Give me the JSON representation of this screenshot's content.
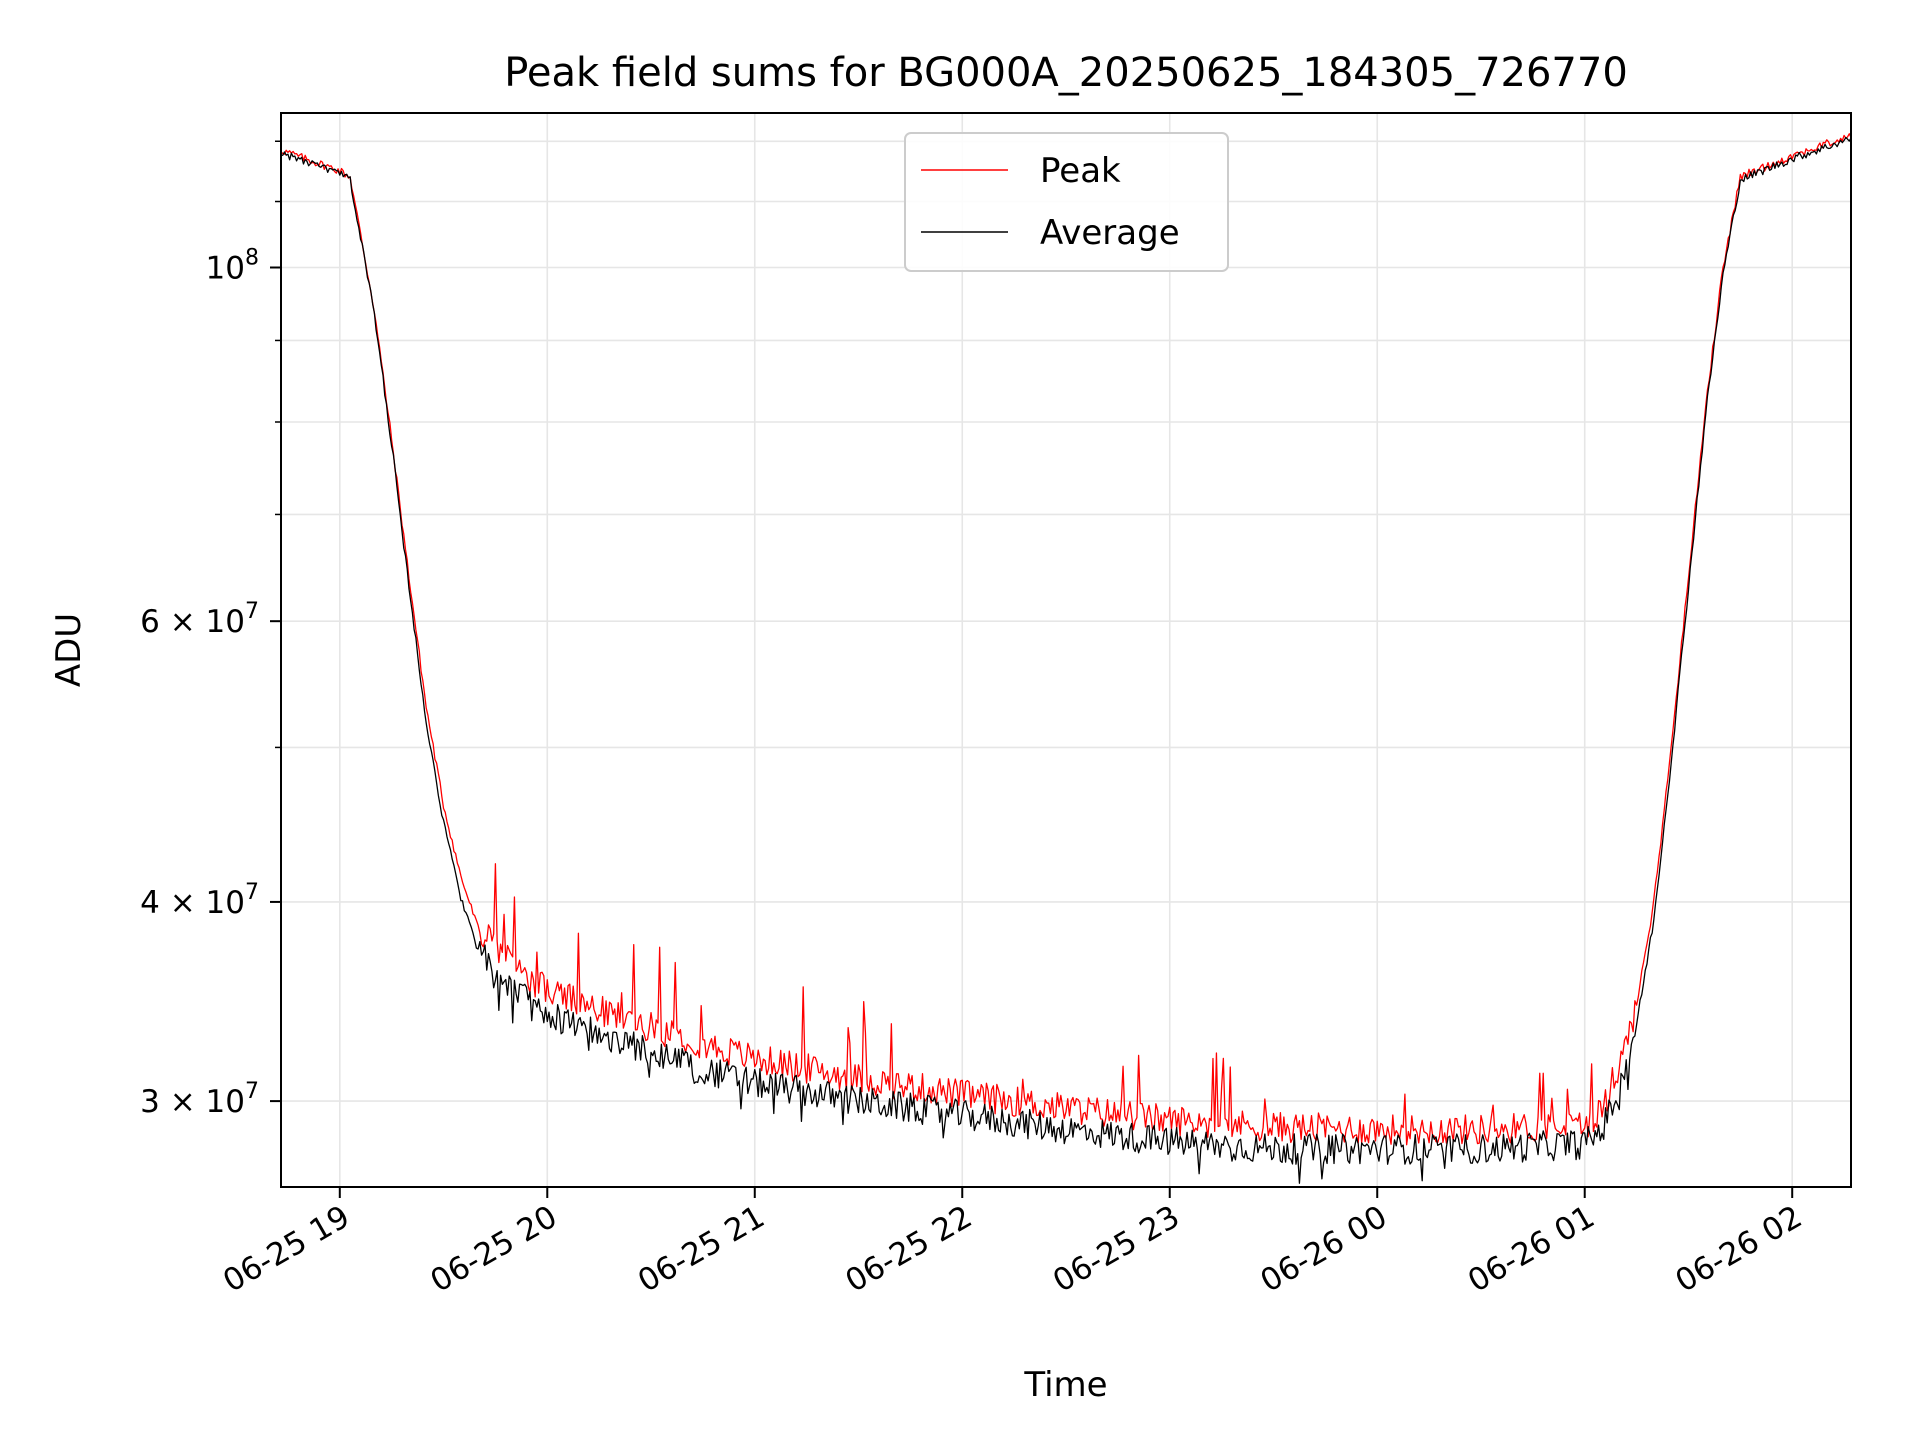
{
  "chart_data": {
    "type": "line",
    "title": "Peak field sums for BG000A_20250625_184305_726770",
    "xlabel": "Time",
    "ylabel": "ADU",
    "y_scale": "log",
    "ylim": [
      26500000,
      125000000
    ],
    "xlim": [
      "06-25 18:43",
      "06-26 02:17"
    ],
    "grid": true,
    "legend_position": "top-center",
    "x_ticks": [
      {
        "t": "06-25 19:00",
        "label": "06-25 19"
      },
      {
        "t": "06-25 20:00",
        "label": "06-25 20"
      },
      {
        "t": "06-25 21:00",
        "label": "06-25 21"
      },
      {
        "t": "06-25 22:00",
        "label": "06-25 22"
      },
      {
        "t": "06-25 23:00",
        "label": "06-25 23"
      },
      {
        "t": "06-26 00:00",
        "label": "06-26 00"
      },
      {
        "t": "06-26 01:00",
        "label": "06-26 01"
      },
      {
        "t": "06-26 02:00",
        "label": "06-26 02"
      }
    ],
    "y_ticks": [
      {
        "value": 30000000,
        "base": "3 × 10",
        "exp": "7"
      },
      {
        "value": 40000000,
        "base": "4 × 10",
        "exp": "7"
      },
      {
        "value": 60000000,
        "base": "6 × 10",
        "exp": "7"
      },
      {
        "value": 100000000,
        "base": "10",
        "exp": "8"
      }
    ],
    "y_minor_ticks": [
      50000000,
      70000000,
      80000000,
      90000000,
      110000000,
      120000000
    ],
    "series": [
      {
        "name": "Peak",
        "color": "#ff0000",
        "points": [
          [
            "06-25 18:43",
            118500000
          ],
          [
            "06-25 18:50",
            117000000
          ],
          [
            "06-25 19:00",
            115000000
          ],
          [
            "06-25 19:03",
            114000000
          ],
          [
            "06-25 19:10",
            94000000
          ],
          [
            "06-25 19:15",
            78000000
          ],
          [
            "06-25 19:20",
            64000000
          ],
          [
            "06-25 19:25",
            53000000
          ],
          [
            "06-25 19:30",
            46000000
          ],
          [
            "06-25 19:35",
            41500000
          ],
          [
            "06-25 19:40",
            38500000
          ],
          [
            "06-25 19:50",
            36500000
          ],
          [
            "06-25 20:00",
            35200000
          ],
          [
            "06-25 20:15",
            34200000
          ],
          [
            "06-25 20:30",
            33400000
          ],
          [
            "06-25 20:45",
            32600000
          ],
          [
            "06-25 21:00",
            31900000
          ],
          [
            "06-25 21:30",
            31000000
          ],
          [
            "06-25 22:00",
            30300000
          ],
          [
            "06-25 22:30",
            29700000
          ],
          [
            "06-25 23:00",
            29200000
          ],
          [
            "06-25 23:30",
            28900000
          ],
          [
            "06-26 00:00",
            28800000
          ],
          [
            "06-26 00:30",
            28800000
          ],
          [
            "06-26 01:00",
            29000000
          ],
          [
            "06-26 01:05",
            29600000
          ],
          [
            "06-26 01:10",
            31500000
          ],
          [
            "06-26 01:15",
            34500000
          ],
          [
            "06-26 01:20",
            40000000
          ],
          [
            "06-26 01:25",
            50000000
          ],
          [
            "06-26 01:30",
            64000000
          ],
          [
            "06-26 01:35",
            82000000
          ],
          [
            "06-26 01:40",
            100000000
          ],
          [
            "06-26 01:45",
            114000000
          ],
          [
            "06-26 02:00",
            117500000
          ],
          [
            "06-26 02:17",
            121000000
          ]
        ]
      },
      {
        "name": "Average",
        "color": "#000000",
        "points": [
          [
            "06-25 18:43",
            118000000
          ],
          [
            "06-25 18:50",
            116500000
          ],
          [
            "06-25 19:00",
            114500000
          ],
          [
            "06-25 19:03",
            113500000
          ],
          [
            "06-25 19:10",
            93500000
          ],
          [
            "06-25 19:15",
            77500000
          ],
          [
            "06-25 19:20",
            63000000
          ],
          [
            "06-25 19:25",
            52000000
          ],
          [
            "06-25 19:30",
            44800000
          ],
          [
            "06-25 19:35",
            40300000
          ],
          [
            "06-25 19:40",
            37300000
          ],
          [
            "06-25 19:50",
            35300000
          ],
          [
            "06-25 20:00",
            34000000
          ],
          [
            "06-25 20:15",
            33000000
          ],
          [
            "06-25 20:30",
            32200000
          ],
          [
            "06-25 20:45",
            31400000
          ],
          [
            "06-25 21:00",
            30800000
          ],
          [
            "06-25 21:30",
            30000000
          ],
          [
            "06-25 22:00",
            29400000
          ],
          [
            "06-25 22:30",
            28800000
          ],
          [
            "06-25 23:00",
            28300000
          ],
          [
            "06-25 23:30",
            28000000
          ],
          [
            "06-26 00:00",
            28000000
          ],
          [
            "06-26 00:30",
            28000000
          ],
          [
            "06-26 01:00",
            28200000
          ],
          [
            "06-26 01:05",
            28800000
          ],
          [
            "06-26 01:10",
            30500000
          ],
          [
            "06-26 01:15",
            33500000
          ],
          [
            "06-26 01:20",
            39000000
          ],
          [
            "06-26 01:25",
            49000000
          ],
          [
            "06-26 01:30",
            63000000
          ],
          [
            "06-26 01:35",
            81000000
          ],
          [
            "06-26 01:40",
            99000000
          ],
          [
            "06-26 01:45",
            113500000
          ],
          [
            "06-26 02:00",
            117000000
          ],
          [
            "06-26 02:17",
            120500000
          ]
        ]
      }
    ]
  },
  "colors": {
    "peak": "#ff0000",
    "average": "#000000",
    "grid": "#e6e6e6",
    "legend_border": "#cccccc"
  }
}
